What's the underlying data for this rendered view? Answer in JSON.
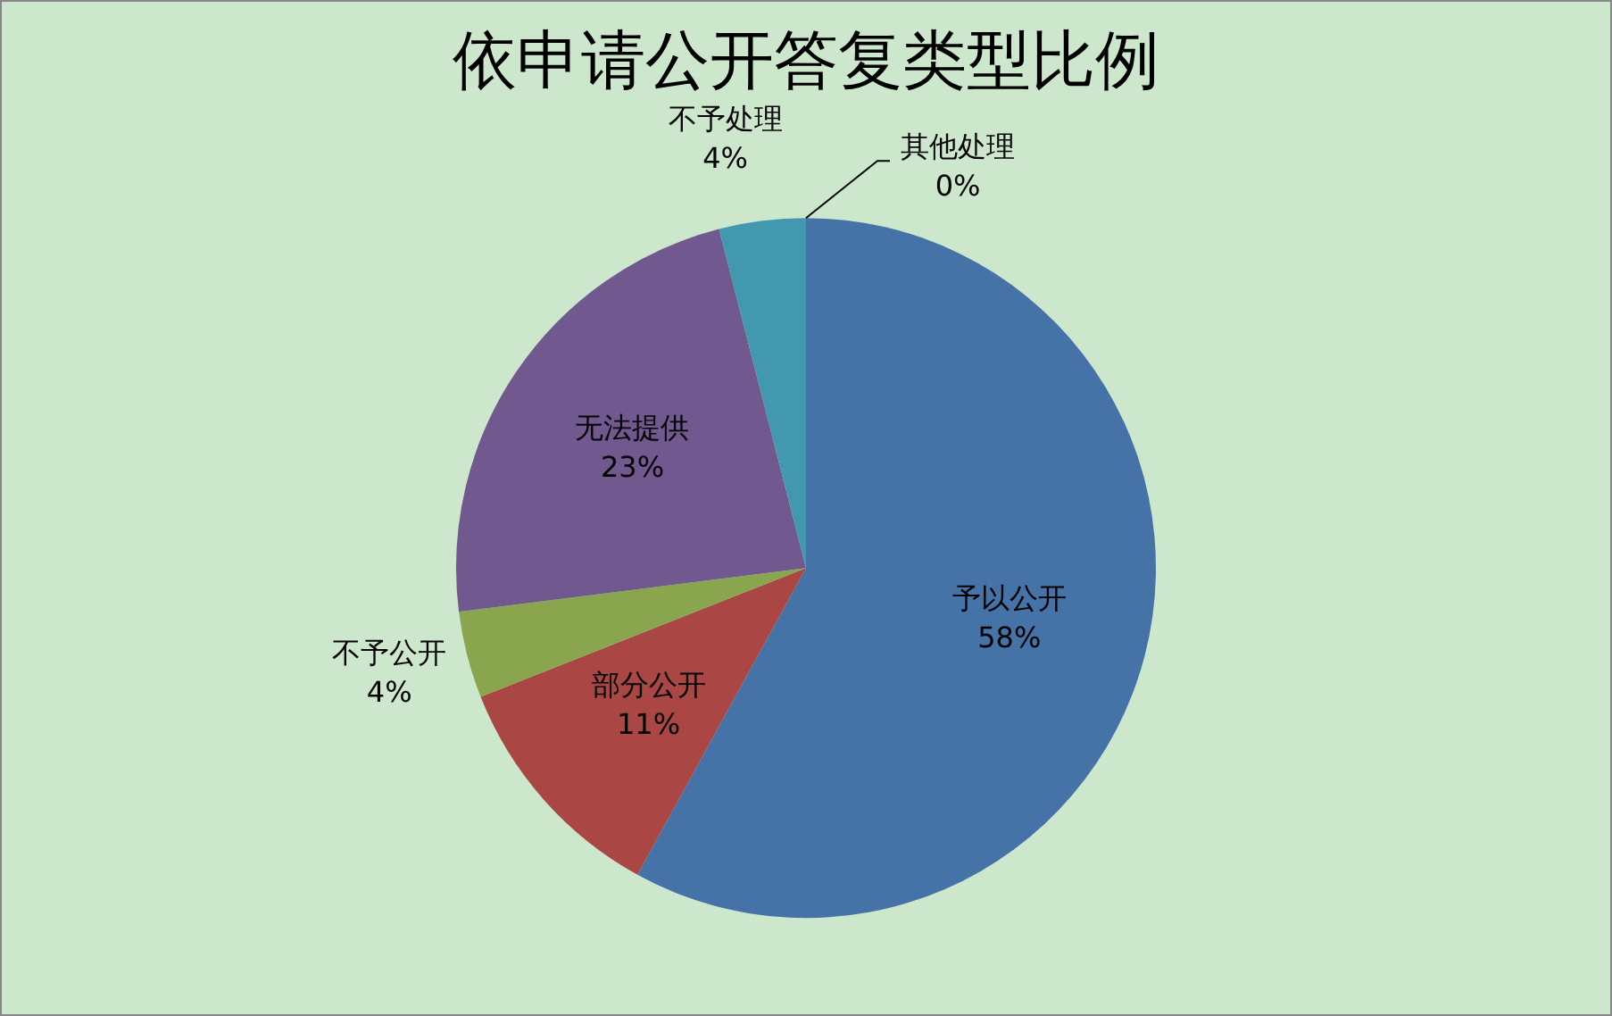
{
  "chart_data": {
    "type": "pie",
    "title": "依申请公开答复类型比例",
    "categories": [
      "予以公开",
      "部分公开",
      "不予公开",
      "无法提供",
      "不予处理",
      "其他处理"
    ],
    "values": [
      58,
      11,
      4,
      23,
      4,
      0
    ],
    "colors": [
      "#4572a7",
      "#aa4643",
      "#89a54e",
      "#71588f",
      "#4198af",
      "#db843d"
    ],
    "value_labels": [
      "58%",
      "11%",
      "4%",
      "23%",
      "4%",
      "0%"
    ],
    "legend": false
  }
}
